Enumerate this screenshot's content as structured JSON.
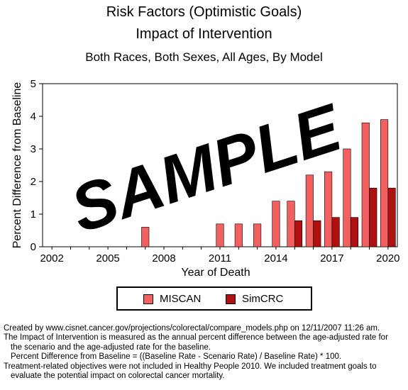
{
  "title": "Risk Factors (Optimistic Goals)",
  "subtitle": "Impact of Intervention",
  "subsubtitle": "Both Races, Both Sexes, All Ages, By Model",
  "watermark": "SAMPLE",
  "chart_data": {
    "type": "bar",
    "title": "Risk Factors (Optimistic Goals)",
    "xlabel": "Year of Death",
    "ylabel": "Percent Difference from Baseline",
    "ylim": [
      0,
      5
    ],
    "yticks": [
      "0",
      "1",
      "2",
      "3",
      "4",
      "5"
    ],
    "xticks": [
      "2002",
      "2005",
      "2008",
      "2011",
      "2014",
      "2017",
      "2020"
    ],
    "categories": [
      2002,
      2003,
      2004,
      2005,
      2006,
      2007,
      2008,
      2009,
      2010,
      2011,
      2012,
      2013,
      2014,
      2015,
      2016,
      2017,
      2018,
      2019,
      2020
    ],
    "series": [
      {
        "name": "MISCAN",
        "color": "#f26060",
        "values": [
          null,
          null,
          null,
          null,
          null,
          0.6,
          null,
          null,
          null,
          0.7,
          0.7,
          0.7,
          1.4,
          1.4,
          2.2,
          2.3,
          3.0,
          3.8,
          3.9
        ]
      },
      {
        "name": "SimCRC",
        "color": "#b01010",
        "values": [
          null,
          null,
          null,
          null,
          null,
          null,
          null,
          null,
          null,
          null,
          null,
          null,
          null,
          0.8,
          0.8,
          0.9,
          0.9,
          1.8,
          1.8
        ]
      }
    ],
    "grid": false,
    "legend": "bottom"
  },
  "footnote": {
    "line1": "Created by www.cisnet.cancer.gov/projections/colorectal/compare_models.php on 12/11/2007 11:26 am.",
    "line2": "The Impact of Intervention is measured as the annual percent difference between the age-adjusted rate for",
    "line3": "the scenario and the age-adjusted rate for the baseline.",
    "line4": "Percent Difference from Baseline = ((Baseline Rate - Scenario Rate) / Baseline Rate) * 100.",
    "line5": "Treatment-related objectives were not included in Healthy People 2010. We included treatment goals to",
    "line6": "evaluate the potential impact on colorectal cancer mortality."
  }
}
